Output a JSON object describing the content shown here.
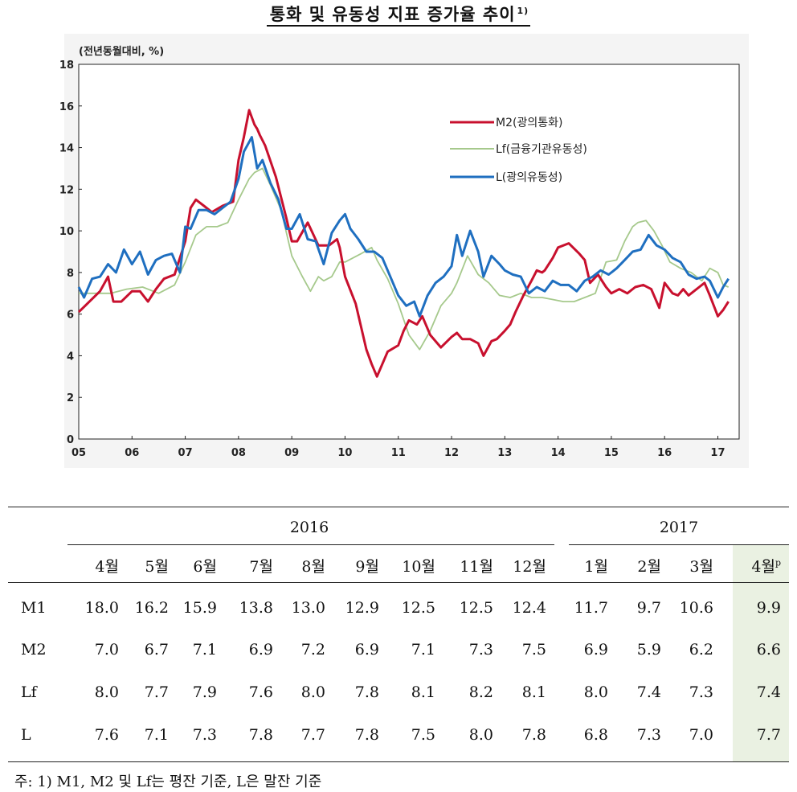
{
  "page_title": "통화 및 유동성 지표 증가율 추이",
  "page_title_sup": "1)",
  "chart_data": {
    "type": "line",
    "ylabel": "(전년동월대비, %)",
    "ylim": [
      0,
      18
    ],
    "yticks": [
      0,
      2,
      4,
      6,
      8,
      10,
      12,
      14,
      16,
      18
    ],
    "xlim": [
      2005,
      2017.4
    ],
    "xticks": [
      "05",
      "06",
      "07",
      "08",
      "09",
      "10",
      "11",
      "12",
      "13",
      "14",
      "15",
      "16",
      "17"
    ],
    "legend_position": "top-right",
    "series": [
      {
        "name": "M2(광의통화)",
        "color": "#c8102e",
        "x": [
          2005.0,
          2005.2,
          2005.4,
          2005.55,
          2005.65,
          2005.8,
          2006.0,
          2006.15,
          2006.3,
          2006.45,
          2006.6,
          2006.8,
          2007.0,
          2007.1,
          2007.2,
          2007.35,
          2007.5,
          2007.7,
          2007.9,
          2008.0,
          2008.1,
          2008.2,
          2008.3,
          2008.35,
          2008.4,
          2008.5,
          2008.7,
          2008.9,
          2009.0,
          2009.1,
          2009.3,
          2009.5,
          2009.7,
          2009.85,
          2009.9,
          2010.0,
          2010.2,
          2010.4,
          2010.5,
          2010.6,
          2010.8,
          2011.0,
          2011.1,
          2011.2,
          2011.35,
          2011.45,
          2011.6,
          2011.8,
          2012.0,
          2012.1,
          2012.2,
          2012.35,
          2012.5,
          2012.6,
          2012.75,
          2012.85,
          2013.0,
          2013.1,
          2013.2,
          2013.35,
          2013.5,
          2013.6,
          2013.7,
          2013.75,
          2013.9,
          2014.0,
          2014.2,
          2014.4,
          2014.5,
          2014.6,
          2014.75,
          2014.9,
          2015.0,
          2015.15,
          2015.3,
          2015.45,
          2015.6,
          2015.75,
          2015.9,
          2016.0,
          2016.15,
          2016.25,
          2016.35,
          2016.45,
          2016.55,
          2016.65,
          2016.75,
          2016.85,
          2017.0,
          2017.1,
          2017.2
        ],
        "y": [
          6.1,
          6.6,
          7.1,
          7.8,
          6.6,
          6.6,
          7.1,
          7.1,
          6.6,
          7.2,
          7.7,
          7.9,
          9.5,
          11.1,
          11.5,
          11.2,
          10.9,
          11.2,
          11.4,
          13.4,
          14.5,
          15.8,
          15.1,
          14.9,
          14.6,
          14.1,
          12.6,
          10.6,
          9.5,
          9.5,
          10.4,
          9.3,
          9.3,
          9.6,
          9.2,
          7.8,
          6.5,
          4.3,
          3.6,
          3.0,
          4.2,
          4.5,
          5.2,
          5.7,
          5.5,
          5.9,
          5.0,
          4.4,
          4.9,
          5.1,
          4.8,
          4.8,
          4.6,
          4.0,
          4.7,
          4.8,
          5.2,
          5.5,
          6.1,
          6.9,
          7.6,
          8.1,
          8.0,
          8.1,
          8.7,
          9.2,
          9.4,
          8.9,
          8.6,
          7.5,
          7.9,
          7.3,
          7.0,
          7.2,
          7.0,
          7.3,
          7.4,
          7.2,
          6.3,
          7.5,
          7.0,
          6.9,
          7.2,
          6.9,
          7.1,
          7.3,
          7.5,
          6.9,
          5.9,
          6.2,
          6.6
        ]
      },
      {
        "name": "Lf(금융기관유동성)",
        "color": "#a6c98c",
        "x": [
          2005.0,
          2005.3,
          2005.6,
          2005.9,
          2006.2,
          2006.5,
          2006.8,
          2007.0,
          2007.2,
          2007.4,
          2007.6,
          2007.8,
          2008.0,
          2008.2,
          2008.3,
          2008.45,
          2008.6,
          2008.8,
          2009.0,
          2009.2,
          2009.35,
          2009.5,
          2009.6,
          2009.75,
          2009.9,
          2010.0,
          2010.3,
          2010.5,
          2010.6,
          2010.8,
          2011.0,
          2011.2,
          2011.4,
          2011.6,
          2011.8,
          2012.0,
          2012.1,
          2012.3,
          2012.5,
          2012.7,
          2012.9,
          2013.1,
          2013.3,
          2013.5,
          2013.7,
          2013.9,
          2014.1,
          2014.3,
          2014.5,
          2014.7,
          2014.9,
          2015.1,
          2015.25,
          2015.4,
          2015.5,
          2015.65,
          2015.8,
          2015.95,
          2016.1,
          2016.3,
          2016.5,
          2016.7,
          2016.85,
          2017.0,
          2017.1,
          2017.2
        ],
        "y": [
          7.0,
          7.0,
          7.0,
          7.2,
          7.3,
          7.0,
          7.4,
          8.5,
          9.8,
          10.2,
          10.2,
          10.4,
          11.5,
          12.5,
          12.8,
          13.0,
          12.2,
          11.0,
          8.8,
          7.8,
          7.1,
          7.8,
          7.6,
          7.8,
          8.5,
          8.5,
          8.9,
          9.2,
          8.6,
          7.7,
          6.5,
          5.0,
          4.3,
          5.2,
          6.4,
          7.0,
          7.5,
          8.8,
          7.9,
          7.5,
          6.9,
          6.8,
          7.0,
          6.8,
          6.8,
          6.7,
          6.6,
          6.6,
          6.8,
          7.0,
          8.5,
          8.6,
          9.5,
          10.2,
          10.4,
          10.5,
          10.0,
          9.3,
          8.5,
          8.2,
          8.0,
          7.6,
          8.2,
          8.0,
          7.4,
          7.3
        ]
      },
      {
        "name": "L(광의유동성)",
        "color": "#1f6fc0",
        "x": [
          2005.0,
          2005.1,
          2005.25,
          2005.4,
          2005.55,
          2005.7,
          2005.85,
          2006.0,
          2006.15,
          2006.3,
          2006.45,
          2006.6,
          2006.75,
          2006.9,
          2007.0,
          2007.1,
          2007.25,
          2007.4,
          2007.55,
          2007.7,
          2007.85,
          2008.0,
          2008.1,
          2008.25,
          2008.35,
          2008.45,
          2008.6,
          2008.75,
          2008.9,
          2009.0,
          2009.15,
          2009.3,
          2009.45,
          2009.6,
          2009.75,
          2009.9,
          2010.0,
          2010.1,
          2010.25,
          2010.4,
          2010.55,
          2010.7,
          2010.85,
          2011.0,
          2011.15,
          2011.3,
          2011.4,
          2011.55,
          2011.7,
          2011.85,
          2012.0,
          2012.1,
          2012.2,
          2012.35,
          2012.5,
          2012.6,
          2012.75,
          2012.9,
          2013.0,
          2013.15,
          2013.3,
          2013.45,
          2013.6,
          2013.75,
          2013.9,
          2014.05,
          2014.2,
          2014.35,
          2014.5,
          2014.65,
          2014.8,
          2014.95,
          2015.1,
          2015.25,
          2015.4,
          2015.55,
          2015.7,
          2015.85,
          2016.0,
          2016.15,
          2016.3,
          2016.45,
          2016.6,
          2016.75,
          2016.85,
          2017.0,
          2017.1,
          2017.2
        ],
        "y": [
          7.3,
          6.8,
          7.7,
          7.8,
          8.4,
          8.0,
          9.1,
          8.4,
          9.0,
          7.9,
          8.6,
          8.8,
          8.9,
          8.0,
          10.2,
          10.1,
          11.0,
          11.0,
          10.8,
          11.1,
          11.4,
          12.5,
          13.8,
          14.5,
          13.0,
          13.4,
          12.3,
          11.5,
          10.1,
          10.1,
          10.8,
          9.6,
          9.5,
          8.4,
          9.9,
          10.5,
          10.8,
          10.1,
          9.6,
          9.0,
          9.0,
          8.7,
          7.8,
          6.9,
          6.4,
          6.6,
          5.9,
          6.9,
          7.5,
          7.8,
          8.3,
          9.8,
          8.8,
          10.0,
          9.0,
          7.8,
          8.8,
          8.4,
          8.1,
          7.9,
          7.8,
          7.0,
          7.3,
          7.1,
          7.6,
          7.4,
          7.4,
          7.1,
          7.6,
          7.8,
          8.1,
          7.9,
          8.2,
          8.6,
          9.0,
          9.1,
          9.8,
          9.3,
          9.1,
          8.7,
          8.5,
          7.9,
          7.7,
          7.8,
          7.6,
          6.8,
          7.3,
          7.7
        ]
      }
    ]
  },
  "table": {
    "year_headers": [
      "2016",
      "2017"
    ],
    "months_2016": [
      "4월",
      "5월",
      "6월",
      "7월",
      "8월",
      "9월",
      "10월",
      "11월",
      "12월"
    ],
    "months_2017": [
      "1월",
      "2월",
      "3월",
      "4월"
    ],
    "last_month_sup": "p",
    "rows": [
      {
        "label": "M1",
        "values": [
          "18.0",
          "16.2",
          "15.9",
          "13.8",
          "13.0",
          "12.9",
          "12.5",
          "12.5",
          "12.4",
          "11.7",
          "9.7",
          "10.6",
          "9.9"
        ]
      },
      {
        "label": "M2",
        "values": [
          "7.0",
          "6.7",
          "7.1",
          "6.9",
          "7.2",
          "6.9",
          "7.1",
          "7.3",
          "7.5",
          "6.9",
          "5.9",
          "6.2",
          "6.6"
        ]
      },
      {
        "label": "Lf",
        "values": [
          "8.0",
          "7.7",
          "7.9",
          "7.6",
          "8.0",
          "7.8",
          "8.1",
          "8.2",
          "8.1",
          "8.0",
          "7.4",
          "7.3",
          "7.4"
        ]
      },
      {
        "label": "L",
        "values": [
          "7.6",
          "7.1",
          "7.3",
          "7.8",
          "7.7",
          "7.8",
          "7.5",
          "8.0",
          "7.8",
          "6.8",
          "7.3",
          "7.0",
          "7.7"
        ]
      }
    ]
  },
  "footnote": "주: 1) M1, M2 및 Lf는 평잔 기준, L은 말잔 기준"
}
